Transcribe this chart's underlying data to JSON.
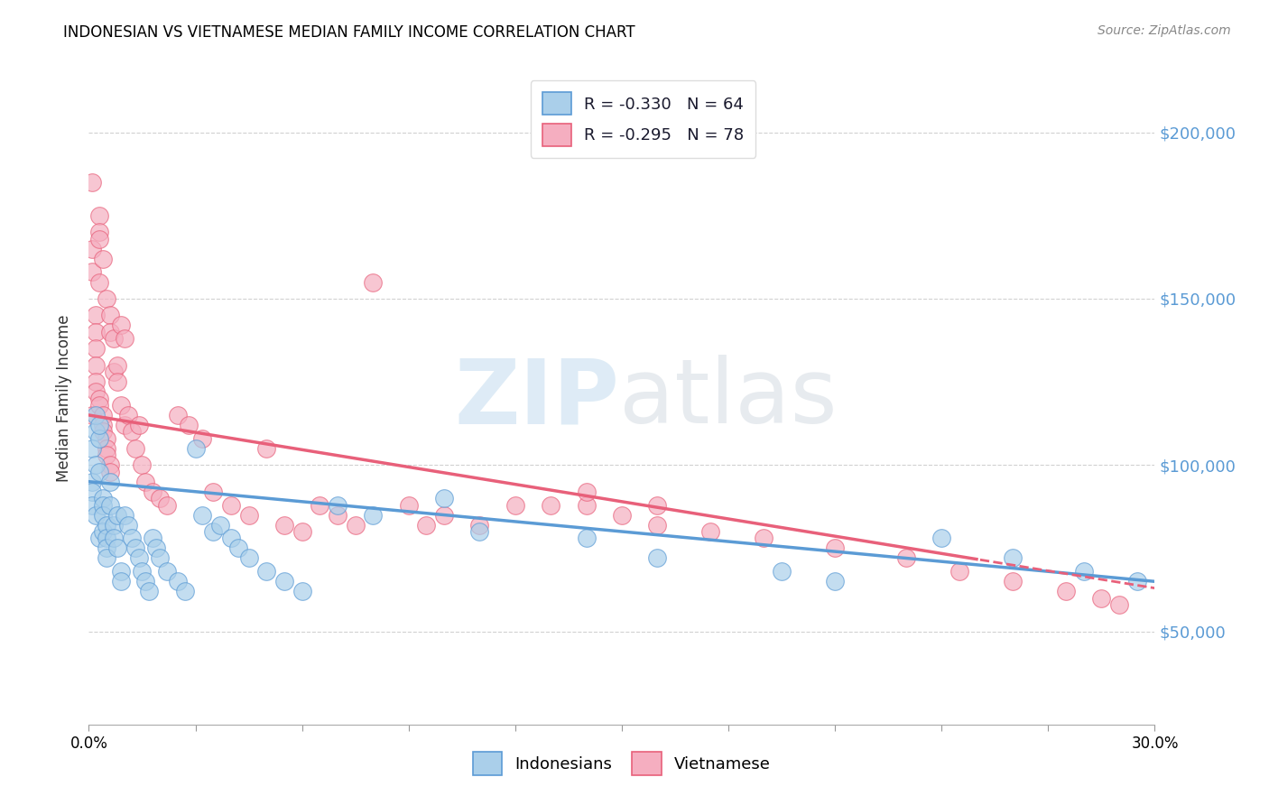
{
  "title": "INDONESIAN VS VIETNAMESE MEDIAN FAMILY INCOME CORRELATION CHART",
  "source": "Source: ZipAtlas.com",
  "ylabel": "Median Family Income",
  "y_ticks": [
    50000,
    100000,
    150000,
    200000
  ],
  "y_tick_labels": [
    "$50,000",
    "$100,000",
    "$150,000",
    "$200,000"
  ],
  "xlim": [
    0.0,
    0.3
  ],
  "ylim": [
    22000,
    218000
  ],
  "legend1_text": "R = -0.330   N = 64",
  "legend2_text": "R = -0.295   N = 78",
  "indonesian_color": "#aacfea",
  "vietnamese_color": "#f5aec0",
  "indonesian_line_color": "#5b9bd5",
  "vietnamese_line_color": "#e8607a",
  "indonesian_scatter": [
    [
      0.001,
      95000
    ],
    [
      0.001,
      92000
    ],
    [
      0.001,
      88000
    ],
    [
      0.001,
      105000
    ],
    [
      0.002,
      85000
    ],
    [
      0.002,
      100000
    ],
    [
      0.002,
      110000
    ],
    [
      0.002,
      115000
    ],
    [
      0.003,
      108000
    ],
    [
      0.003,
      98000
    ],
    [
      0.003,
      112000
    ],
    [
      0.003,
      78000
    ],
    [
      0.004,
      90000
    ],
    [
      0.004,
      88000
    ],
    [
      0.004,
      85000
    ],
    [
      0.004,
      80000
    ],
    [
      0.005,
      82000
    ],
    [
      0.005,
      78000
    ],
    [
      0.005,
      75000
    ],
    [
      0.005,
      72000
    ],
    [
      0.006,
      95000
    ],
    [
      0.006,
      88000
    ],
    [
      0.007,
      82000
    ],
    [
      0.007,
      78000
    ],
    [
      0.008,
      75000
    ],
    [
      0.008,
      85000
    ],
    [
      0.009,
      68000
    ],
    [
      0.009,
      65000
    ],
    [
      0.01,
      85000
    ],
    [
      0.011,
      82000
    ],
    [
      0.012,
      78000
    ],
    [
      0.013,
      75000
    ],
    [
      0.014,
      72000
    ],
    [
      0.015,
      68000
    ],
    [
      0.016,
      65000
    ],
    [
      0.017,
      62000
    ],
    [
      0.018,
      78000
    ],
    [
      0.019,
      75000
    ],
    [
      0.02,
      72000
    ],
    [
      0.022,
      68000
    ],
    [
      0.025,
      65000
    ],
    [
      0.027,
      62000
    ],
    [
      0.03,
      105000
    ],
    [
      0.032,
      85000
    ],
    [
      0.035,
      80000
    ],
    [
      0.037,
      82000
    ],
    [
      0.04,
      78000
    ],
    [
      0.042,
      75000
    ],
    [
      0.045,
      72000
    ],
    [
      0.05,
      68000
    ],
    [
      0.055,
      65000
    ],
    [
      0.06,
      62000
    ],
    [
      0.07,
      88000
    ],
    [
      0.08,
      85000
    ],
    [
      0.1,
      90000
    ],
    [
      0.11,
      80000
    ],
    [
      0.14,
      78000
    ],
    [
      0.16,
      72000
    ],
    [
      0.195,
      68000
    ],
    [
      0.21,
      65000
    ],
    [
      0.24,
      78000
    ],
    [
      0.26,
      72000
    ],
    [
      0.28,
      68000
    ],
    [
      0.295,
      65000
    ]
  ],
  "vietnamese_scatter": [
    [
      0.001,
      185000
    ],
    [
      0.001,
      165000
    ],
    [
      0.001,
      158000
    ],
    [
      0.001,
      115000
    ],
    [
      0.002,
      145000
    ],
    [
      0.002,
      140000
    ],
    [
      0.002,
      135000
    ],
    [
      0.002,
      130000
    ],
    [
      0.002,
      125000
    ],
    [
      0.002,
      122000
    ],
    [
      0.003,
      175000
    ],
    [
      0.003,
      170000
    ],
    [
      0.003,
      168000
    ],
    [
      0.003,
      155000
    ],
    [
      0.003,
      120000
    ],
    [
      0.003,
      118000
    ],
    [
      0.004,
      162000
    ],
    [
      0.004,
      115000
    ],
    [
      0.004,
      112000
    ],
    [
      0.004,
      110000
    ],
    [
      0.005,
      150000
    ],
    [
      0.005,
      108000
    ],
    [
      0.005,
      105000
    ],
    [
      0.005,
      103000
    ],
    [
      0.006,
      145000
    ],
    [
      0.006,
      140000
    ],
    [
      0.006,
      100000
    ],
    [
      0.006,
      98000
    ],
    [
      0.007,
      138000
    ],
    [
      0.007,
      128000
    ],
    [
      0.008,
      130000
    ],
    [
      0.008,
      125000
    ],
    [
      0.009,
      142000
    ],
    [
      0.009,
      118000
    ],
    [
      0.01,
      138000
    ],
    [
      0.01,
      112000
    ],
    [
      0.011,
      115000
    ],
    [
      0.012,
      110000
    ],
    [
      0.013,
      105000
    ],
    [
      0.014,
      112000
    ],
    [
      0.015,
      100000
    ],
    [
      0.016,
      95000
    ],
    [
      0.018,
      92000
    ],
    [
      0.02,
      90000
    ],
    [
      0.022,
      88000
    ],
    [
      0.025,
      115000
    ],
    [
      0.028,
      112000
    ],
    [
      0.032,
      108000
    ],
    [
      0.035,
      92000
    ],
    [
      0.04,
      88000
    ],
    [
      0.045,
      85000
    ],
    [
      0.05,
      105000
    ],
    [
      0.055,
      82000
    ],
    [
      0.06,
      80000
    ],
    [
      0.065,
      88000
    ],
    [
      0.07,
      85000
    ],
    [
      0.075,
      82000
    ],
    [
      0.08,
      155000
    ],
    [
      0.09,
      88000
    ],
    [
      0.1,
      85000
    ],
    [
      0.11,
      82000
    ],
    [
      0.13,
      88000
    ],
    [
      0.14,
      88000
    ],
    [
      0.15,
      85000
    ],
    [
      0.16,
      82000
    ],
    [
      0.175,
      80000
    ],
    [
      0.19,
      78000
    ],
    [
      0.21,
      75000
    ],
    [
      0.23,
      72000
    ],
    [
      0.245,
      68000
    ],
    [
      0.26,
      65000
    ],
    [
      0.275,
      62000
    ],
    [
      0.285,
      60000
    ],
    [
      0.29,
      58000
    ],
    [
      0.12,
      88000
    ],
    [
      0.095,
      82000
    ],
    [
      0.14,
      92000
    ],
    [
      0.16,
      88000
    ]
  ]
}
